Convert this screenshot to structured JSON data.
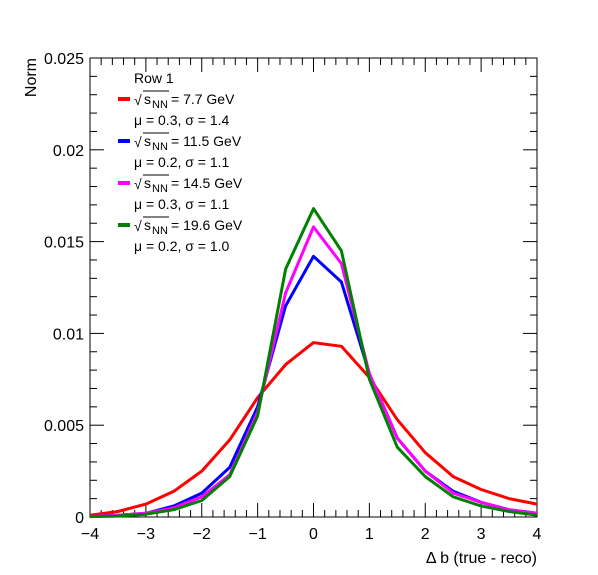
{
  "chart_data": {
    "type": "line",
    "title": "",
    "xlabel": "Δ b (true - reco)",
    "ylabel": "Norm",
    "xlim": [
      -4,
      4
    ],
    "ylim": [
      0,
      0.025
    ],
    "x_ticks": [
      "−4",
      "−3",
      "−2",
      "−1",
      "0",
      "1",
      "2",
      "3",
      "4"
    ],
    "y_ticks": [
      "0",
      "0.005",
      "0.01",
      "0.015",
      "0.02",
      "0.025"
    ],
    "legend": {
      "header": "Row 1",
      "placement": "top-left",
      "entries": [
        {
          "energy_label": "= 7.7 GeV",
          "stats_label": "μ = 0.3, σ = 1.4"
        },
        {
          "energy_label": "= 11.5 GeV",
          "stats_label": "μ = 0.2, σ = 1.1"
        },
        {
          "energy_label": "= 14.5 GeV",
          "stats_label": "μ = 0.3, σ = 1.1"
        },
        {
          "energy_label": "= 19.6 GeV",
          "stats_label": "μ = 0.2, σ = 1.0"
        }
      ],
      "sqrt_symbol": "√",
      "s_letter": "s",
      "nn_subscript": "NN"
    },
    "series": [
      {
        "color": "#ff0000",
        "mean": 0.3,
        "sigma": 1.4,
        "x": [
          -4,
          -3.5,
          -3,
          -2.5,
          -2,
          -1.5,
          -1,
          -0.5,
          0,
          0.5,
          1,
          1.5,
          2,
          2.5,
          3,
          3.5,
          4
        ],
        "y": [
          0.0001,
          0.0003,
          0.0007,
          0.0014,
          0.0025,
          0.0042,
          0.0065,
          0.0083,
          0.0095,
          0.0093,
          0.0076,
          0.0053,
          0.0035,
          0.0022,
          0.0015,
          0.001,
          0.0007
        ]
      },
      {
        "color": "#0000ff",
        "mean": 0.2,
        "sigma": 1.1,
        "x": [
          -4,
          -3.5,
          -3,
          -2.5,
          -2,
          -1.5,
          -1,
          -0.5,
          0,
          0.5,
          1,
          1.5,
          2,
          2.5,
          3,
          3.5,
          4
        ],
        "y": [
          3e-05,
          0.0001,
          0.0002,
          0.0006,
          0.0013,
          0.0027,
          0.006,
          0.0115,
          0.0142,
          0.0128,
          0.0078,
          0.0043,
          0.0025,
          0.0014,
          0.0008,
          0.0004,
          0.0002
        ]
      },
      {
        "color": "#ff00ff",
        "mean": 0.3,
        "sigma": 1.1,
        "x": [
          -4,
          -3.5,
          -3,
          -2.5,
          -2,
          -1.5,
          -1,
          -0.5,
          0,
          0.5,
          1,
          1.5,
          2,
          2.5,
          3,
          3.5,
          4
        ],
        "y": [
          3e-05,
          0.0001,
          0.0002,
          0.0005,
          0.0011,
          0.0023,
          0.0057,
          0.0122,
          0.0158,
          0.0138,
          0.0078,
          0.0043,
          0.0025,
          0.0013,
          0.0008,
          0.0004,
          0.0002
        ]
      },
      {
        "color": "#008000",
        "mean": 0.2,
        "sigma": 1.0,
        "x": [
          -4,
          -3.5,
          -3,
          -2.5,
          -2,
          -1.5,
          -1,
          -0.5,
          0,
          0.5,
          1,
          1.5,
          2,
          2.5,
          3,
          3.5,
          4
        ],
        "y": [
          2e-05,
          5e-05,
          0.00015,
          0.0004,
          0.0009,
          0.0022,
          0.0055,
          0.0135,
          0.0168,
          0.0145,
          0.0075,
          0.0038,
          0.0022,
          0.0011,
          0.0006,
          0.0003,
          0.0001
        ]
      }
    ]
  }
}
